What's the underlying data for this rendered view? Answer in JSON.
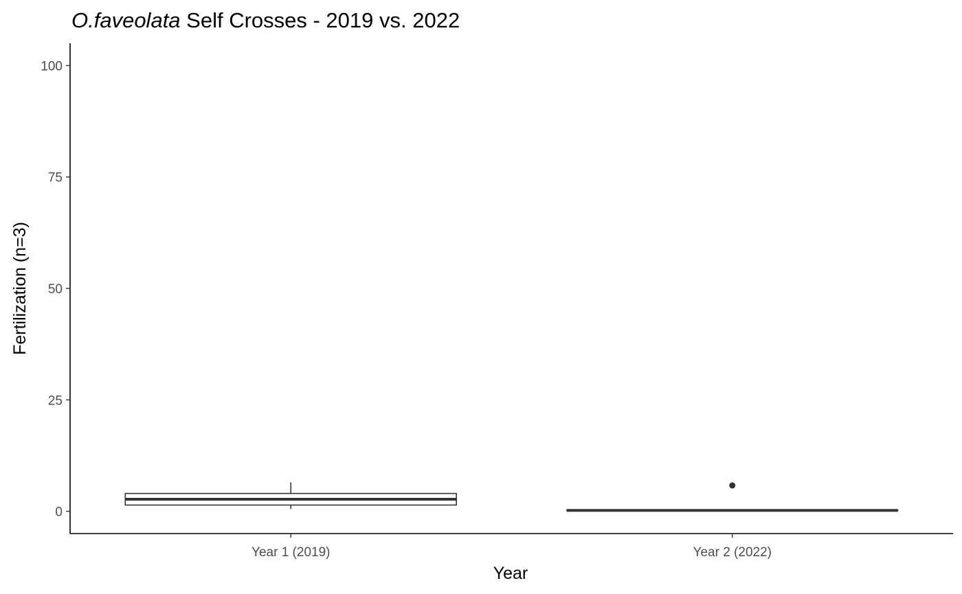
{
  "chart_data": {
    "type": "boxplot",
    "title_italic": "O.faveolata",
    "title_rest": " Self Crosses - 2019 vs. 2022",
    "xlabel": "Year",
    "ylabel": "Fertilization (n=3)",
    "ylim": [
      -5,
      105
    ],
    "yticks": [
      0,
      25,
      50,
      75,
      100
    ],
    "categories": [
      "Year 1 (2019)",
      "Year 2 (2022)"
    ],
    "boxes": [
      {
        "category": "Year 1 (2019)",
        "whisker_low": 0.5,
        "q1": 1.4,
        "median": 2.7,
        "q3": 4.0,
        "whisker_high": 6.5,
        "outliers": []
      },
      {
        "category": "Year 2 (2022)",
        "whisker_low": 0.2,
        "q1": 0.2,
        "median": 0.2,
        "q3": 0.2,
        "whisker_high": 0.2,
        "outliers": [
          5.8
        ]
      }
    ],
    "grid": false,
    "legend": "none"
  }
}
